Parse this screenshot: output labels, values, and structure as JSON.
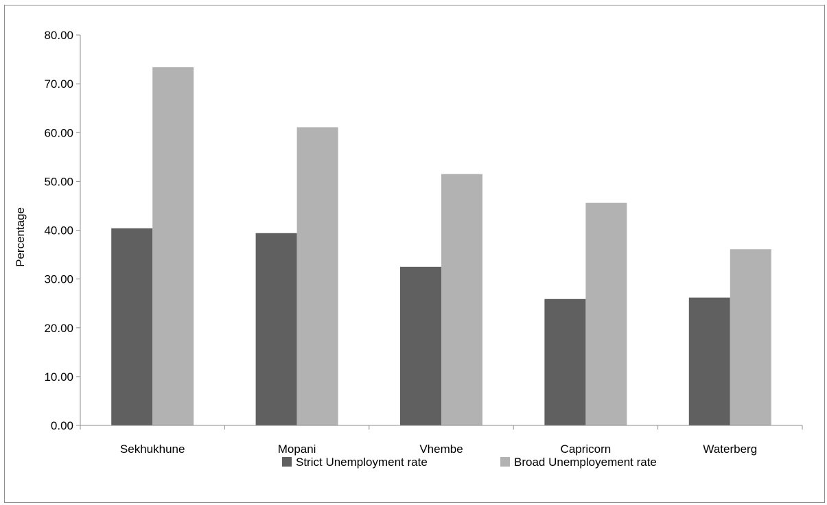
{
  "chart_data": {
    "type": "bar",
    "title": "",
    "xlabel": "",
    "ylabel": "Percentage",
    "ylim": [
      0,
      80
    ],
    "ytick_step": 10,
    "ytick_format_decimals": 2,
    "grid": false,
    "legend_position": "bottom",
    "categories": [
      "Sekhukhune",
      "Mopani",
      "Vhembe",
      "Capricorn",
      "Waterberg"
    ],
    "series": [
      {
        "name": "Strict Unemployment rate",
        "color": "#606060",
        "values": [
          40.4,
          39.4,
          32.5,
          25.9,
          26.2
        ]
      },
      {
        "name": "Broad Unemployement rate",
        "color": "#b2b2b2",
        "values": [
          73.4,
          61.1,
          51.5,
          45.6,
          36.1
        ]
      }
    ]
  }
}
